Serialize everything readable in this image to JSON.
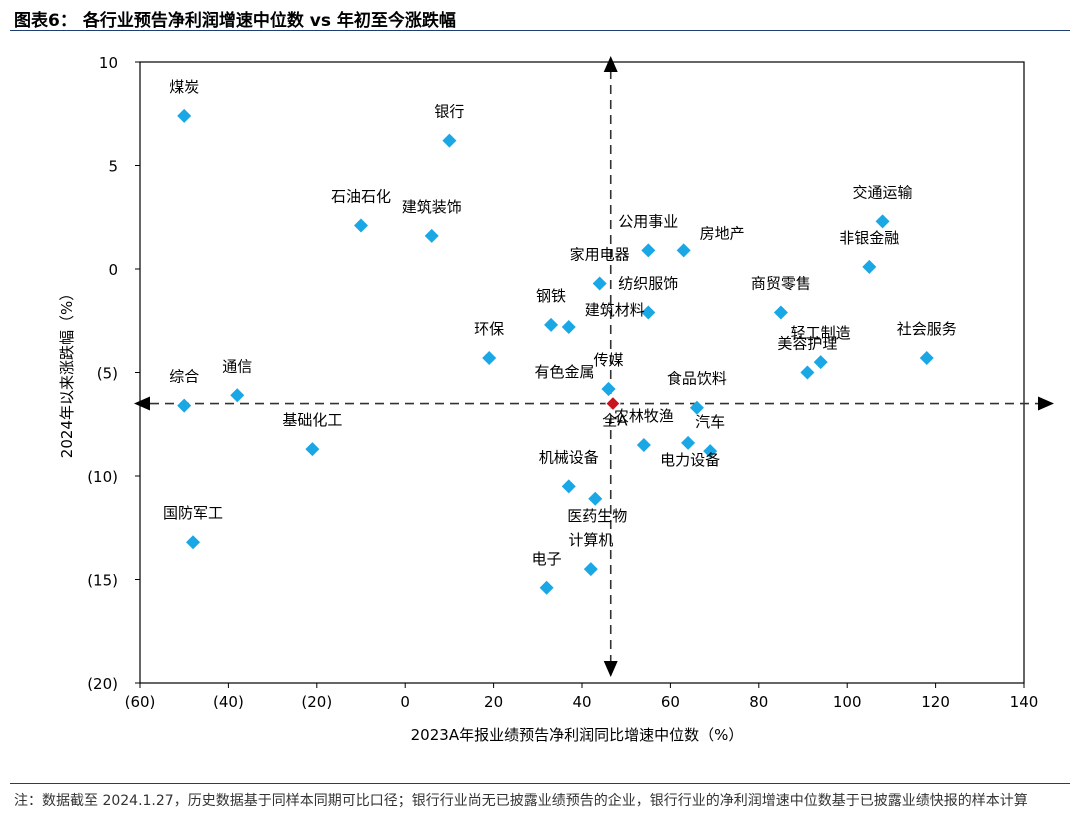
{
  "figure": {
    "label": "图表6：",
    "title": "各行业预告净利润增速中位数 vs 年初至今涨跌幅"
  },
  "note": "注：数据截至 2024.1.27，历史数据基于同样本同期可比口径；银行行业尚无已披露业绩预告的企业，银行行业的净利润增速中位数基于已披露业绩快报的样本计算",
  "colors": {
    "point": "#1aa7e6",
    "highlight": "#c8141e",
    "axis": "#000000",
    "guide": "#333333"
  },
  "chart_data": {
    "type": "scatter",
    "title": "",
    "xlabel": "2023A年报业绩预告净利润同比增速中位数（%）",
    "ylabel": "2024年以来涨跌幅（%）",
    "xlim": [
      -60,
      140
    ],
    "ylim": [
      -20,
      10
    ],
    "x_ticks": [
      -60,
      -40,
      -20,
      0,
      20,
      40,
      60,
      80,
      100,
      120,
      140
    ],
    "x_tick_labels": [
      "(60)",
      "(40)",
      "(20)",
      "0",
      "20",
      "40",
      "60",
      "80",
      "100",
      "120",
      "140"
    ],
    "y_ticks": [
      10,
      5,
      0,
      -5,
      -10,
      -15,
      -20
    ],
    "y_tick_labels": [
      "10",
      "5",
      "0",
      "(5)",
      "(10)",
      "(15)",
      "(20)"
    ],
    "grid": false,
    "reference_lines": {
      "x": 46.5,
      "y": -6.5
    },
    "points": [
      {
        "label": "煤炭",
        "x": -50.0,
        "y": 7.4,
        "label_pos": "above"
      },
      {
        "label": "银行",
        "x": 10.0,
        "y": 6.2,
        "label_pos": "above"
      },
      {
        "label": "石油石化",
        "x": -10.0,
        "y": 2.1,
        "label_pos": "above"
      },
      {
        "label": "建筑装饰",
        "x": 6.0,
        "y": 1.6,
        "label_pos": "above"
      },
      {
        "label": "交通运输",
        "x": 108.0,
        "y": 2.3,
        "label_pos": "above"
      },
      {
        "label": "公用事业",
        "x": 55.0,
        "y": 0.9,
        "label_pos": "above"
      },
      {
        "label": "房地产",
        "x": 63.0,
        "y": 0.9,
        "label_pos": "right"
      },
      {
        "label": "家用电器",
        "x": 44.0,
        "y": -0.7,
        "label_pos": "above"
      },
      {
        "label": "非银金融",
        "x": 105.0,
        "y": 0.1,
        "label_pos": "above"
      },
      {
        "label": "纺织服饰",
        "x": 55.0,
        "y": -2.1,
        "label_pos": "above"
      },
      {
        "label": "商贸零售",
        "x": 85.0,
        "y": -2.1,
        "label_pos": "above"
      },
      {
        "label": "钢铁",
        "x": 33.0,
        "y": -2.7,
        "label_pos": "above"
      },
      {
        "label": "建筑材料",
        "x": 37.0,
        "y": -2.8,
        "label_pos": "right"
      },
      {
        "label": "环保",
        "x": 19.0,
        "y": -4.3,
        "label_pos": "above"
      },
      {
        "label": "轻工制造",
        "x": 94.0,
        "y": -4.5,
        "label_pos": "above"
      },
      {
        "label": "美容护理",
        "x": 91.0,
        "y": -5.0,
        "label_pos": "above"
      },
      {
        "label": "社会服务",
        "x": 118.0,
        "y": -4.3,
        "label_pos": "above"
      },
      {
        "label": "有色金属",
        "x": 46.0,
        "y": -5.8,
        "label_pos": "left"
      },
      {
        "label": "传媒",
        "x": 46.0,
        "y": -5.8,
        "label_pos": "above"
      },
      {
        "label": "食品饮料",
        "x": 66.0,
        "y": -6.7,
        "label_pos": "above"
      },
      {
        "label": "综合",
        "x": -50.0,
        "y": -6.6,
        "label_pos": "above"
      },
      {
        "label": "通信",
        "x": -38.0,
        "y": -6.1,
        "label_pos": "above"
      },
      {
        "label": "基础化工",
        "x": -21.0,
        "y": -8.7,
        "label_pos": "above"
      },
      {
        "label": "农林牧渔",
        "x": 54.0,
        "y": -8.5,
        "label_pos": "above"
      },
      {
        "label": "电力设备",
        "x": 64.0,
        "y": -8.4,
        "label_pos": "below"
      },
      {
        "label": "汽车",
        "x": 69.0,
        "y": -8.8,
        "label_pos": "above"
      },
      {
        "label": "机械设备",
        "x": 37.0,
        "y": -10.5,
        "label_pos": "above"
      },
      {
        "label": "医药生物",
        "x": 43.0,
        "y": -11.1,
        "label_pos": "below"
      },
      {
        "label": "国防军工",
        "x": -48.0,
        "y": -13.2,
        "label_pos": "above"
      },
      {
        "label": "计算机",
        "x": 42.0,
        "y": -14.5,
        "label_pos": "above"
      },
      {
        "label": "电子",
        "x": 32.0,
        "y": -15.4,
        "label_pos": "above"
      },
      {
        "label": "全A",
        "x": 47.0,
        "y": -6.5,
        "label_pos": "below",
        "highlight": true
      }
    ]
  }
}
